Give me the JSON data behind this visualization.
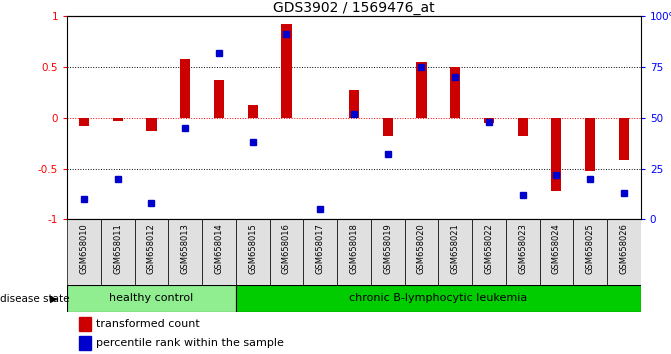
{
  "title": "GDS3902 / 1569476_at",
  "samples": [
    "GSM658010",
    "GSM658011",
    "GSM658012",
    "GSM658013",
    "GSM658014",
    "GSM658015",
    "GSM658016",
    "GSM658017",
    "GSM658018",
    "GSM658019",
    "GSM658020",
    "GSM658021",
    "GSM658022",
    "GSM658023",
    "GSM658024",
    "GSM658025",
    "GSM658026"
  ],
  "transformed_count": [
    -0.08,
    -0.03,
    -0.13,
    0.58,
    0.37,
    0.12,
    0.92,
    0.0,
    0.27,
    -0.18,
    0.55,
    0.5,
    -0.05,
    -0.18,
    -0.72,
    -0.52,
    -0.42
  ],
  "percentile_rank": [
    10,
    20,
    8,
    45,
    82,
    38,
    91,
    5,
    52,
    32,
    75,
    70,
    48,
    12,
    22,
    20,
    13
  ],
  "healthy_control_count": 5,
  "leukemia_count": 12,
  "bar_color": "#CC0000",
  "dot_color": "#0000CC",
  "healthy_color": "#90EE90",
  "leukemia_color": "#00CC00",
  "label_healthy": "healthy control",
  "label_leukemia": "chronic B-lymphocytic leukemia",
  "legend_bar": "transformed count",
  "legend_dot": "percentile rank within the sample",
  "left_yticks": [
    -1,
    -0.5,
    0,
    0.5,
    1
  ],
  "right_yticks": [
    0,
    25,
    50,
    75,
    100
  ],
  "right_yticklabels": [
    "0",
    "25",
    "50",
    "75",
    "100%"
  ],
  "left_yticklabels": [
    "-1",
    "-0.5",
    "0",
    "0.5",
    "1"
  ]
}
